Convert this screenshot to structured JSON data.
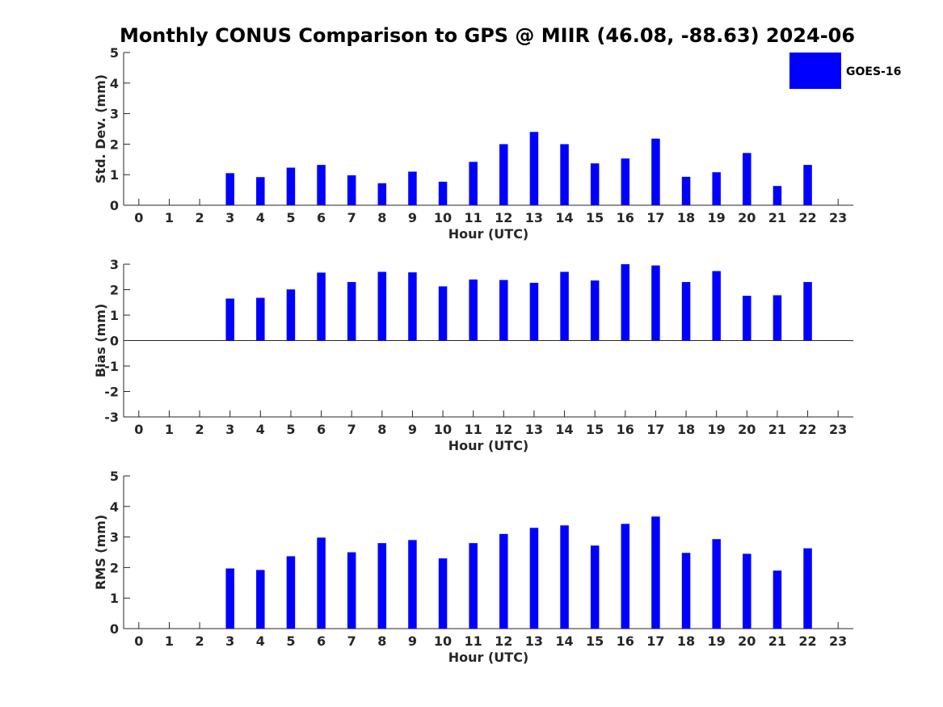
{
  "figure_title": "Monthly CONUS Comparison to GPS @ MIIR (46.08, -88.63) 2024-06",
  "legend": {
    "label": "GOES-16",
    "color": "#0000ff"
  },
  "chart_data": [
    {
      "type": "bar",
      "title": "Monthly CONUS Comparison to GPS @ MIIR (46.08, -88.63) 2024-06",
      "xlabel": "Hour (UTC)",
      "ylabel": "Std. Dev. (mm)",
      "categories": [
        "0",
        "1",
        "2",
        "3",
        "4",
        "5",
        "6",
        "7",
        "8",
        "9",
        "10",
        "11",
        "12",
        "13",
        "14",
        "15",
        "16",
        "17",
        "18",
        "19",
        "20",
        "21",
        "22",
        "23"
      ],
      "yticks": [
        "0",
        "1",
        "2",
        "3",
        "4",
        "5"
      ],
      "ylim": [
        0,
        5
      ],
      "xlim": [
        -0.5,
        23.5
      ],
      "series": [
        {
          "name": "GOES-16",
          "color": "#0000ff",
          "values": [
            null,
            null,
            null,
            1.05,
            0.92,
            1.23,
            1.32,
            0.98,
            0.72,
            1.1,
            0.77,
            1.42,
            2.0,
            2.4,
            2.0,
            1.37,
            1.53,
            2.18,
            0.93,
            1.08,
            1.71,
            0.63,
            1.32,
            null
          ]
        }
      ]
    },
    {
      "type": "bar",
      "xlabel": "Hour (UTC)",
      "ylabel": "Bias (mm)",
      "categories": [
        "0",
        "1",
        "2",
        "3",
        "4",
        "5",
        "6",
        "7",
        "8",
        "9",
        "10",
        "11",
        "12",
        "13",
        "14",
        "15",
        "16",
        "17",
        "18",
        "19",
        "20",
        "21",
        "22",
        "23"
      ],
      "yticks": [
        "-3",
        "-2",
        "-1",
        "0",
        "1",
        "2",
        "3"
      ],
      "ylim": [
        -3,
        3
      ],
      "xlim": [
        -0.5,
        23.5
      ],
      "series": [
        {
          "name": "GOES-16",
          "color": "#0000ff",
          "values": [
            null,
            null,
            null,
            1.65,
            1.68,
            2.01,
            2.67,
            2.3,
            2.7,
            2.68,
            2.13,
            2.4,
            2.38,
            2.27,
            2.7,
            2.36,
            3.0,
            2.95,
            2.3,
            2.73,
            1.76,
            1.78,
            2.3,
            null
          ]
        }
      ]
    },
    {
      "type": "bar",
      "xlabel": "Hour (UTC)",
      "ylabel": "RMS (mm)",
      "categories": [
        "0",
        "1",
        "2",
        "3",
        "4",
        "5",
        "6",
        "7",
        "8",
        "9",
        "10",
        "11",
        "12",
        "13",
        "14",
        "15",
        "16",
        "17",
        "18",
        "19",
        "20",
        "21",
        "22",
        "23"
      ],
      "yticks": [
        "0",
        "1",
        "2",
        "3",
        "4",
        "5"
      ],
      "ylim": [
        0,
        5
      ],
      "xlim": [
        -0.5,
        23.5
      ],
      "series": [
        {
          "name": "GOES-16",
          "color": "#0000ff",
          "values": [
            null,
            null,
            null,
            1.97,
            1.92,
            2.37,
            2.98,
            2.5,
            2.8,
            2.9,
            2.3,
            2.8,
            3.1,
            3.3,
            3.38,
            2.72,
            3.43,
            3.67,
            2.48,
            2.93,
            2.45,
            1.9,
            2.63,
            null
          ]
        }
      ]
    }
  ]
}
